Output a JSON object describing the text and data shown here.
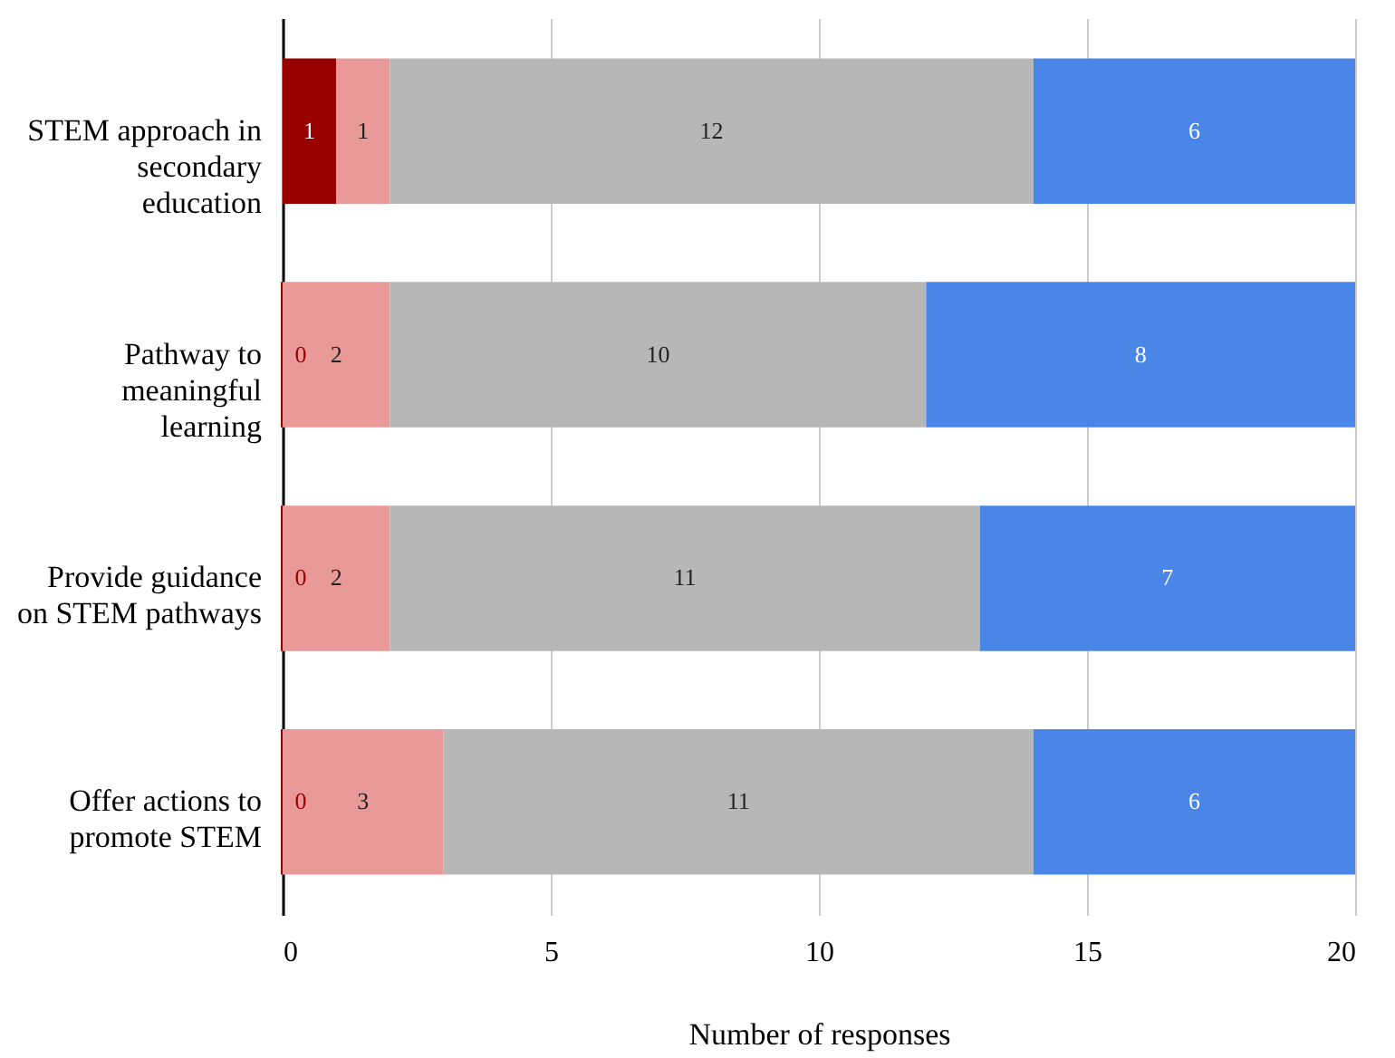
{
  "chart_data": {
    "type": "bar",
    "orientation": "horizontal",
    "stacked": true,
    "categories": [
      "STEM approach in secondary education",
      "Pathway to meaningful learning",
      "Provide guidance on STEM pathways",
      "Offer actions to promote STEM"
    ],
    "series": [
      {
        "color": "#990000",
        "values": [
          1,
          0,
          0,
          0
        ]
      },
      {
        "color": "#ea9999",
        "values": [
          1,
          2,
          2,
          3
        ]
      },
      {
        "color": "#b7b7b7",
        "values": [
          12,
          10,
          11,
          11
        ]
      },
      {
        "color": "#4a86e8",
        "values": [
          6,
          8,
          7,
          6
        ]
      }
    ],
    "xlim": [
      0,
      20
    ],
    "xticks": [
      0,
      5,
      10,
      15,
      20
    ],
    "xlabel": "Number of responses",
    "grid": "x",
    "data_labels": true
  }
}
